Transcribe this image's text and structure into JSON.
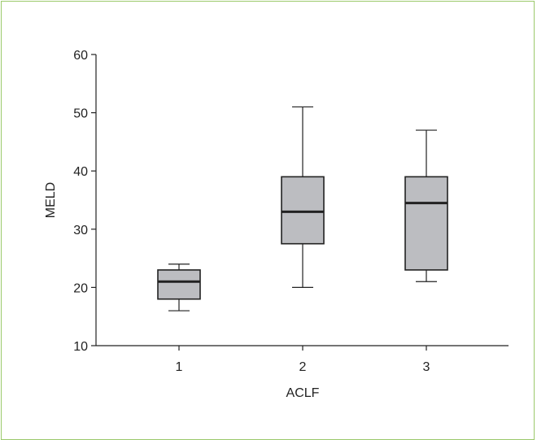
{
  "chart_data": {
    "type": "box",
    "xlabel": "ACLF",
    "ylabel": "MELD",
    "ylim": [
      10,
      60
    ],
    "yticks": [
      10,
      20,
      30,
      40,
      50,
      60
    ],
    "categories": [
      "1",
      "2",
      "3"
    ],
    "boxes": [
      {
        "category": "1",
        "whisker_low": 16,
        "q1": 18,
        "median": 21,
        "q3": 23,
        "whisker_high": 24
      },
      {
        "category": "2",
        "whisker_low": 20,
        "q1": 27.5,
        "median": 33,
        "q3": 39,
        "whisker_high": 51
      },
      {
        "category": "3",
        "whisker_low": 21,
        "q1": 23,
        "median": 34.5,
        "q3": 39,
        "whisker_high": 47
      }
    ],
    "grid": false,
    "colors": {
      "box_fill": "#bcbdc1",
      "stroke": "#222222",
      "frame_border": "#9bc96b"
    }
  }
}
